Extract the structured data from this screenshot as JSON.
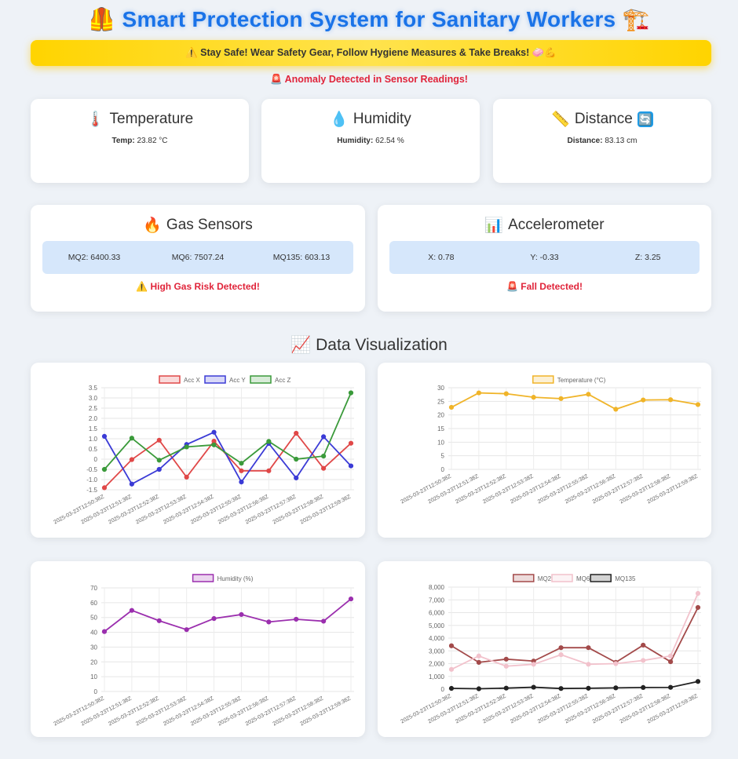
{
  "header": {
    "title": "Smart Protection System for Sanitary Workers",
    "icon_left": "🦺",
    "icon_right": "🏗️"
  },
  "banner": {
    "text": "⚠️ Stay Safe! Wear Safety Gear, Follow Hygiene Measures & Take Breaks! 🧼💪"
  },
  "anomaly": {
    "text": "🚨 Anomaly Detected in Sensor Readings!"
  },
  "cards": {
    "temperature": {
      "icon": "🌡️",
      "title": "Temperature",
      "label": "Temp:",
      "value": "23.82 °C"
    },
    "humidity": {
      "icon": "💧",
      "title": "Humidity",
      "label": "Humidity:",
      "value": "62.54 %"
    },
    "distance": {
      "icon": "📏",
      "title": "Distance",
      "refresh_icon": "🔄",
      "label": "Distance:",
      "value": "83.13 cm"
    },
    "gas": {
      "icon": "🔥",
      "title": "Gas Sensors",
      "mq2": "MQ2: 6400.33",
      "mq6": "MQ6: 7507.24",
      "mq135": "MQ135: 603.13",
      "alert": "⚠️ High Gas Risk Detected!"
    },
    "accelerometer": {
      "icon": "📊",
      "title": "Accelerometer",
      "x": "X: 0.78",
      "y": "Y: -0.33",
      "z": "Z: 3.25",
      "alert": "🚨 Fall Detected!"
    }
  },
  "visualization": {
    "icon": "📈",
    "title": "Data Visualization"
  },
  "chart_data": [
    {
      "type": "line",
      "x": [
        "2025-03-23T12:50:38Z",
        "2025-03-23T12:51:38Z",
        "2025-03-23T12:52:38Z",
        "2025-03-23T12:53:38Z",
        "2025-03-23T12:54:38Z",
        "2025-03-23T12:55:38Z",
        "2025-03-23T12:56:38Z",
        "2025-03-23T12:57:38Z",
        "2025-03-23T12:58:38Z",
        "2025-03-23T12:59:38Z"
      ],
      "ylim": [
        -1.5,
        3.5
      ],
      "yticks": [
        "3.5",
        "3.0",
        "2.5",
        "2.0",
        "1.5",
        "1.0",
        "0.5",
        "0",
        "-0.5",
        "-1.0",
        "-1.5"
      ],
      "series": [
        {
          "name": "Acc X",
          "color": "#e04848",
          "values": [
            -1.4,
            -0.02,
            0.93,
            -0.88,
            0.88,
            -0.57,
            -0.57,
            1.27,
            -0.45,
            0.78
          ]
        },
        {
          "name": "Acc Y",
          "color": "#3b3bd6",
          "values": [
            1.12,
            -1.22,
            -0.5,
            0.72,
            1.32,
            -1.12,
            0.77,
            -0.92,
            1.1,
            -0.33
          ]
        },
        {
          "name": "Acc Z",
          "color": "#3a9a3a",
          "values": [
            -0.5,
            1.03,
            -0.05,
            0.6,
            0.7,
            -0.2,
            0.87,
            0,
            0.15,
            3.25
          ]
        }
      ]
    },
    {
      "type": "line",
      "x": [
        "2025-03-23T12:50:38Z",
        "2025-03-23T12:51:38Z",
        "2025-03-23T12:52:38Z",
        "2025-03-23T12:53:38Z",
        "2025-03-23T12:54:38Z",
        "2025-03-23T12:55:38Z",
        "2025-03-23T12:56:38Z",
        "2025-03-23T12:57:38Z",
        "2025-03-23T12:58:38Z",
        "2025-03-23T12:59:38Z"
      ],
      "ylim": [
        0,
        30
      ],
      "yticks": [
        "30",
        "25",
        "20",
        "15",
        "10",
        "5",
        "0"
      ],
      "series": [
        {
          "name": "Temperature (°C)",
          "color": "#f0b429",
          "values": [
            22.8,
            28.1,
            27.8,
            26.5,
            26.0,
            27.6,
            22.1,
            25.5,
            25.6,
            23.82
          ]
        }
      ]
    },
    {
      "type": "line",
      "x": [
        "2025-03-23T12:50:38Z",
        "2025-03-23T12:51:38Z",
        "2025-03-23T12:52:38Z",
        "2025-03-23T12:53:38Z",
        "2025-03-23T12:54:38Z",
        "2025-03-23T12:55:38Z",
        "2025-03-23T12:56:38Z",
        "2025-03-23T12:57:38Z",
        "2025-03-23T12:58:38Z",
        "2025-03-23T12:59:38Z"
      ],
      "ylim": [
        0,
        70
      ],
      "yticks": [
        "70",
        "60",
        "50",
        "40",
        "30",
        "20",
        "10",
        "0"
      ],
      "series": [
        {
          "name": "Humidity (%)",
          "color": "#9b2fae",
          "values": [
            40.5,
            54.8,
            47.8,
            41.8,
            49.3,
            52.0,
            47.0,
            48.8,
            47.5,
            62.54
          ]
        }
      ]
    },
    {
      "type": "line",
      "x": [
        "2025-03-23T12:50:38Z",
        "2025-03-23T12:51:38Z",
        "2025-03-23T12:52:38Z",
        "2025-03-23T12:53:38Z",
        "2025-03-23T12:54:38Z",
        "2025-03-23T12:55:38Z",
        "2025-03-23T12:56:38Z",
        "2025-03-23T12:57:38Z",
        "2025-03-23T12:58:38Z",
        "2025-03-23T12:59:38Z"
      ],
      "ylim": [
        0,
        8000
      ],
      "yticks": [
        "8,000",
        "7,000",
        "6,000",
        "5,000",
        "4,000",
        "3,000",
        "2,000",
        "1,000",
        "0"
      ],
      "series": [
        {
          "name": "MQ2",
          "color": "#a34a4a",
          "values": [
            3400,
            2100,
            2350,
            2200,
            3250,
            3250,
            2100,
            3450,
            2150,
            6400.33
          ]
        },
        {
          "name": "MQ6",
          "color": "#f2c2cc",
          "values": [
            1550,
            2600,
            1800,
            1950,
            2700,
            1950,
            2000,
            2250,
            2600,
            7507.24
          ]
        },
        {
          "name": "MQ135",
          "color": "#222222",
          "values": [
            60,
            30,
            80,
            150,
            50,
            70,
            100,
            130,
            140,
            603.13
          ]
        }
      ]
    }
  ]
}
